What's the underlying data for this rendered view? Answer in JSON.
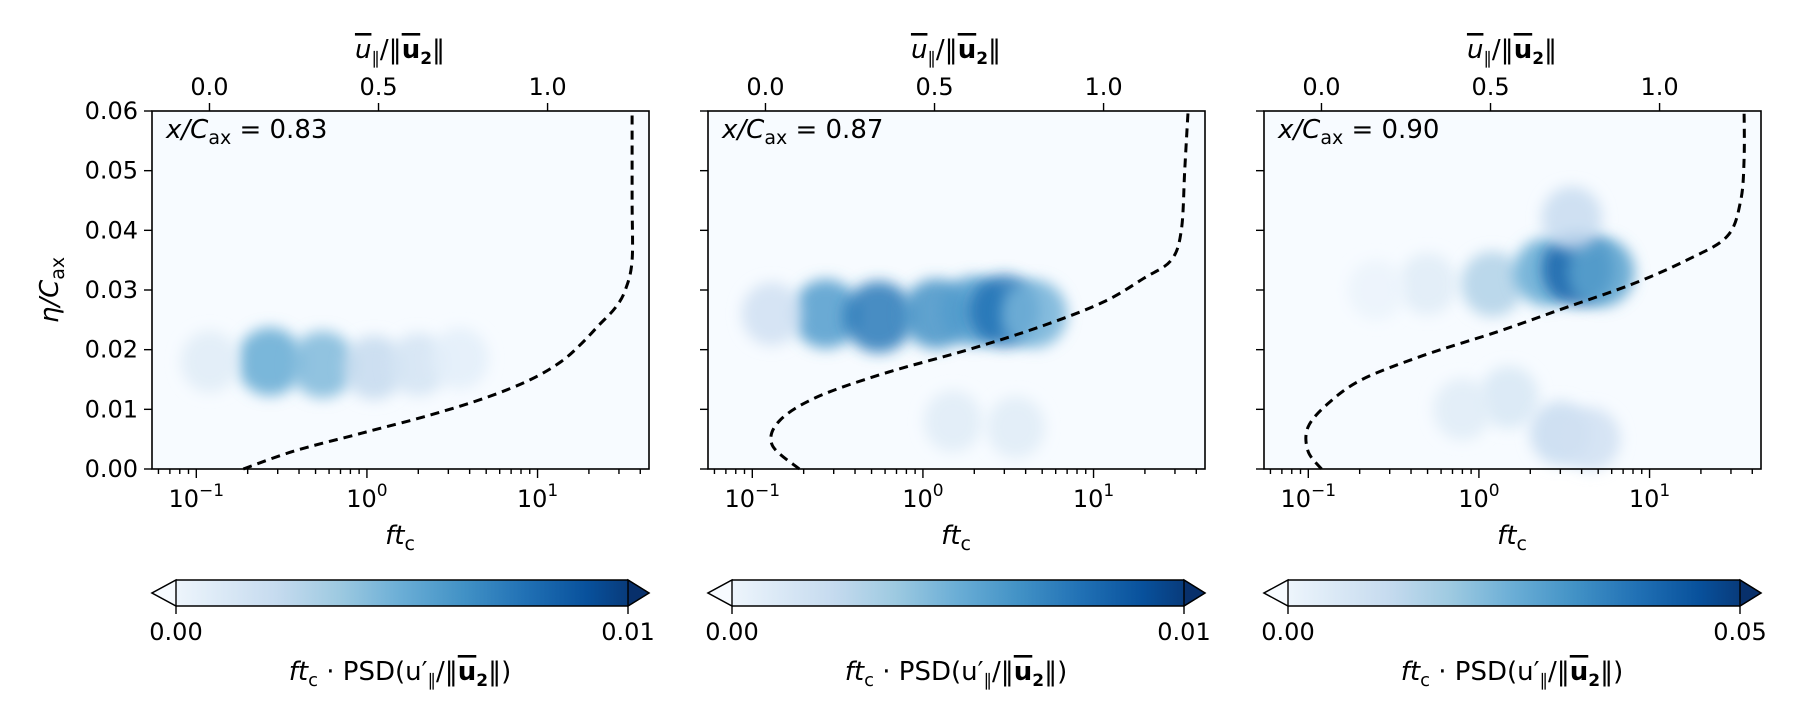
{
  "figure": {
    "colormap": "Blues"
  },
  "chart_data": [
    {
      "type": "heatmap",
      "annotation": "x/C_ax = 0.83",
      "annot_var": "x/C",
      "annot_sub": "ax",
      "annot_val": " = 0.83",
      "xlabel": "ft_c",
      "xlabel_main": "ft",
      "xlabel_sub": "c",
      "ylabel": "η/C_ax",
      "ylabel_main": "η/C",
      "ylabel_sub": "ax",
      "top_xlabel": "ū∥/‖ū₂‖",
      "top_xlabel_main": "u",
      "top_xlabel_sub": "∥",
      "top_xlabel_tail": "/‖",
      "top_xlabel_vec": "u",
      "top_xlabel_vec_sub": "2",
      "top_xlabel_end": "‖",
      "x_scale": "log",
      "xlim": [
        0.055,
        45
      ],
      "ylim": [
        0,
        0.06
      ],
      "x_ticks": [
        0.1,
        1,
        10
      ],
      "x_tick_labels": [
        {
          "base": "10",
          "exp": "−1"
        },
        {
          "base": "10",
          "exp": "0"
        },
        {
          "base": "10",
          "exp": "1"
        }
      ],
      "y_ticks": [
        0,
        0.01,
        0.02,
        0.03,
        0.04,
        0.05,
        0.06
      ],
      "y_tick_labels": [
        "0.00",
        "0.01",
        "0.02",
        "0.03",
        "0.04",
        "0.05",
        "0.06"
      ],
      "top_ticks": [
        0,
        0.5,
        1.0
      ],
      "top_tick_labels": [
        "0.0",
        "0.5",
        "1.0"
      ],
      "top_xlim": [
        -0.17,
        1.3
      ],
      "profile": [
        [
          0.1,
          0
        ],
        [
          0.25,
          0.003
        ],
        [
          0.45,
          0.006
        ],
        [
          0.65,
          0.009
        ],
        [
          0.82,
          0.012
        ],
        [
          0.95,
          0.015
        ],
        [
          1.04,
          0.018
        ],
        [
          1.1,
          0.021
        ],
        [
          1.15,
          0.024
        ],
        [
          1.2,
          0.027
        ],
        [
          1.23,
          0.03
        ],
        [
          1.25,
          0.035
        ],
        [
          1.25,
          0.045
        ],
        [
          1.25,
          0.06
        ]
      ],
      "psd_blobs": [
        {
          "f": 0.27,
          "eta": 0.018,
          "amp": 0.0052
        },
        {
          "f": 0.55,
          "eta": 0.0175,
          "amp": 0.0045
        },
        {
          "f": 1.1,
          "eta": 0.017,
          "amp": 0.0025
        },
        {
          "f": 2.0,
          "eta": 0.0175,
          "amp": 0.0018
        },
        {
          "f": 3.5,
          "eta": 0.0185,
          "amp": 0.001
        },
        {
          "f": 0.12,
          "eta": 0.018,
          "amp": 0.0012
        }
      ],
      "colorbar": {
        "min": 0,
        "max": 0.01,
        "min_label": "0.00",
        "max_label": "0.01",
        "extend": "both"
      },
      "colorbar_label": "ft_c · PSD(u'∥/‖ū₂‖)",
      "cb_ft": "ft",
      "cb_c": "c",
      "cb_mid": " · PSD(u′",
      "cb_par": "∥",
      "cb_slash": "/‖",
      "cb_u": "u",
      "cb_2": "2",
      "cb_close": "‖)"
    },
    {
      "type": "heatmap",
      "annotation": "x/C_ax = 0.87",
      "annot_var": "x/C",
      "annot_sub": "ax",
      "annot_val": " = 0.87",
      "xlabel": "ft_c",
      "xlabel_main": "ft",
      "xlabel_sub": "c",
      "top_xlabel": "ū∥/‖ū₂‖",
      "top_xlabel_main": "u",
      "top_xlabel_sub": "∥",
      "top_xlabel_tail": "/‖",
      "top_xlabel_vec": "u",
      "top_xlabel_vec_sub": "2",
      "top_xlabel_end": "‖",
      "x_scale": "log",
      "xlim": [
        0.055,
        45
      ],
      "ylim": [
        0,
        0.06
      ],
      "x_ticks": [
        0.1,
        1,
        10
      ],
      "x_tick_labels": [
        {
          "base": "10",
          "exp": "−1"
        },
        {
          "base": "10",
          "exp": "0"
        },
        {
          "base": "10",
          "exp": "1"
        }
      ],
      "y_ticks": [
        0,
        0.01,
        0.02,
        0.03,
        0.04,
        0.05,
        0.06
      ],
      "top_ticks": [
        0,
        0.5,
        1.0
      ],
      "top_tick_labels": [
        "0.0",
        "0.5",
        "1.0"
      ],
      "top_xlim": [
        -0.17,
        1.3
      ],
      "profile": [
        [
          0.1,
          0
        ],
        [
          0.02,
          0.004
        ],
        [
          0.04,
          0.008
        ],
        [
          0.15,
          0.012
        ],
        [
          0.35,
          0.016
        ],
        [
          0.6,
          0.02
        ],
        [
          0.82,
          0.024
        ],
        [
          1.0,
          0.028
        ],
        [
          1.12,
          0.032
        ],
        [
          1.2,
          0.035
        ],
        [
          1.23,
          0.04
        ],
        [
          1.24,
          0.05
        ],
        [
          1.25,
          0.06
        ]
      ],
      "psd_blobs": [
        {
          "f": 0.27,
          "eta": 0.026,
          "amp": 0.0058
        },
        {
          "f": 0.55,
          "eta": 0.0255,
          "amp": 0.0072
        },
        {
          "f": 1.2,
          "eta": 0.026,
          "amp": 0.0062
        },
        {
          "f": 2.0,
          "eta": 0.0265,
          "amp": 0.0058
        },
        {
          "f": 3.0,
          "eta": 0.0265,
          "amp": 0.0075
        },
        {
          "f": 4.5,
          "eta": 0.026,
          "amp": 0.0048
        },
        {
          "f": 0.13,
          "eta": 0.026,
          "amp": 0.002
        },
        {
          "f": 1.5,
          "eta": 0.008,
          "amp": 0.0012
        },
        {
          "f": 3.5,
          "eta": 0.007,
          "amp": 0.0012
        }
      ],
      "colorbar": {
        "min": 0,
        "max": 0.01,
        "min_label": "0.00",
        "max_label": "0.01",
        "extend": "both"
      },
      "colorbar_label": "ft_c · PSD(u'∥/‖ū₂‖)",
      "cb_ft": "ft",
      "cb_c": "c",
      "cb_mid": " · PSD(u′",
      "cb_par": "∥",
      "cb_slash": "/‖",
      "cb_u": "u",
      "cb_2": "2",
      "cb_close": "‖)"
    },
    {
      "type": "heatmap",
      "annotation": "x/C_ax = 0.90",
      "annot_var": "x/C",
      "annot_sub": "ax",
      "annot_val": " = 0.90",
      "xlabel": "ft_c",
      "xlabel_main": "ft",
      "xlabel_sub": "c",
      "top_xlabel": "ū∥/‖ū₂‖",
      "top_xlabel_main": "u",
      "top_xlabel_sub": "∥",
      "top_xlabel_tail": "/‖",
      "top_xlabel_vec": "u",
      "top_xlabel_vec_sub": "2",
      "top_xlabel_end": "‖",
      "x_scale": "log",
      "xlim": [
        0.055,
        45
      ],
      "ylim": [
        0,
        0.06
      ],
      "x_ticks": [
        0.1,
        1,
        10
      ],
      "x_tick_labels": [
        {
          "base": "10",
          "exp": "−1"
        },
        {
          "base": "10",
          "exp": "0"
        },
        {
          "base": "10",
          "exp": "1"
        }
      ],
      "y_ticks": [
        0,
        0.01,
        0.02,
        0.03,
        0.04,
        0.05,
        0.06
      ],
      "top_ticks": [
        0,
        0.5,
        1.0
      ],
      "top_tick_labels": [
        "0.0",
        "0.5",
        "1.0"
      ],
      "top_xlim": [
        -0.17,
        1.3
      ],
      "profile": [
        [
          0.0,
          0
        ],
        [
          -0.04,
          0.003
        ],
        [
          -0.04,
          0.007
        ],
        [
          0.02,
          0.011
        ],
        [
          0.12,
          0.015
        ],
        [
          0.3,
          0.019
        ],
        [
          0.52,
          0.023
        ],
        [
          0.72,
          0.027
        ],
        [
          0.92,
          0.031
        ],
        [
          1.08,
          0.035
        ],
        [
          1.2,
          0.039
        ],
        [
          1.24,
          0.045
        ],
        [
          1.25,
          0.052
        ],
        [
          1.25,
          0.06
        ]
      ],
      "psd_blobs": [
        {
          "f": 0.5,
          "eta": 0.031,
          "amp": 0.006
        },
        {
          "f": 1.2,
          "eta": 0.031,
          "amp": 0.016
        },
        {
          "f": 2.5,
          "eta": 0.033,
          "amp": 0.026
        },
        {
          "f": 3.8,
          "eta": 0.0335,
          "amp": 0.04
        },
        {
          "f": 5.2,
          "eta": 0.033,
          "amp": 0.028
        },
        {
          "f": 3.5,
          "eta": 0.042,
          "amp": 0.012
        },
        {
          "f": 1.5,
          "eta": 0.012,
          "amp": 0.008
        },
        {
          "f": 3.0,
          "eta": 0.006,
          "amp": 0.012
        },
        {
          "f": 4.5,
          "eta": 0.005,
          "amp": 0.01
        },
        {
          "f": 0.8,
          "eta": 0.01,
          "amp": 0.006
        },
        {
          "f": 0.25,
          "eta": 0.03,
          "amp": 0.003
        }
      ],
      "colorbar": {
        "min": 0,
        "max": 0.05,
        "min_label": "0.00",
        "max_label": "0.05",
        "extend": "both"
      },
      "colorbar_label": "ft_c · PSD(u'∥/‖ū₂‖)",
      "cb_ft": "ft",
      "cb_c": "c",
      "cb_mid": " · PSD(u′",
      "cb_par": "∥",
      "cb_slash": "/‖",
      "cb_u": "u",
      "cb_2": "2",
      "cb_close": "‖)"
    }
  ]
}
